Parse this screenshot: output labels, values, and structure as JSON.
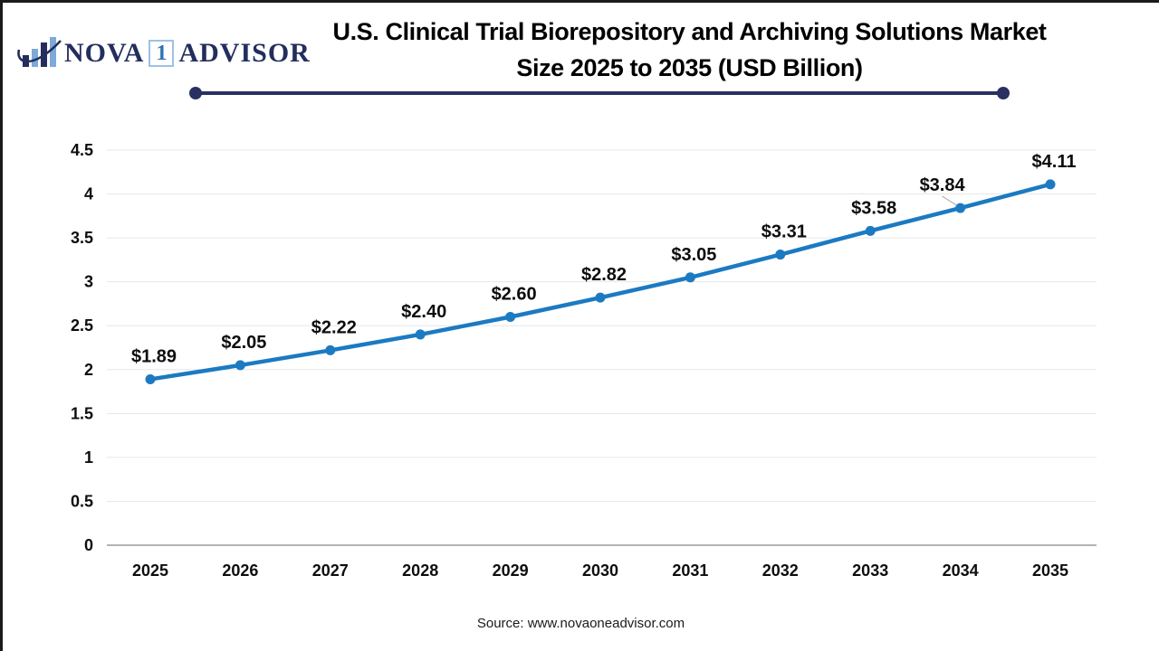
{
  "logo": {
    "icon": "bar-chart-swoosh-icon",
    "word1": "NOVA",
    "badge": "1",
    "word2": "ADVISOR"
  },
  "title": {
    "line1": "U.S. Clinical Trial Biorepository and Archiving Solutions Market",
    "line2": "Size 2025 to 2035 (USD Billion)"
  },
  "source": "Source: www.novaoneadvisor.com",
  "chart_data": {
    "type": "line",
    "title": "U.S. Clinical Trial Biorepository and Archiving Solutions Market Size 2025 to 2035 (USD Billion)",
    "unit": "USD Billion",
    "categories": [
      "2025",
      "2026",
      "2027",
      "2028",
      "2029",
      "2030",
      "2031",
      "2032",
      "2033",
      "2034",
      "2035"
    ],
    "values": [
      1.89,
      2.05,
      2.22,
      2.4,
      2.6,
      2.82,
      3.05,
      3.31,
      3.58,
      3.84,
      4.11
    ],
    "point_labels": [
      "$1.89",
      "$2.05",
      "$2.22",
      "$2.40",
      "$2.60",
      "$2.82",
      "$3.05",
      "$3.31",
      "$3.58",
      "$3.84",
      "$4.11"
    ],
    "xlabel": "",
    "ylabel": "",
    "ylim": [
      0,
      4.5
    ],
    "yticks": [
      "0",
      "0.5",
      "1",
      "1.5",
      "2",
      "2.5",
      "3",
      "3.5",
      "4",
      "4.5"
    ],
    "grid": true,
    "legend": "none",
    "line_color": "#1b7ac2",
    "marker": "circle"
  },
  "colors": {
    "line": "#1b7ac2",
    "divider_navy": "#2a3160",
    "logo_navy": "#232e5e",
    "logo_light_blue": "#7ea9d8",
    "grid": "#e7e7e7",
    "axis": "#b3b3b3",
    "leader": "#a6a6a6",
    "label_text": "#0d0d0d"
  }
}
